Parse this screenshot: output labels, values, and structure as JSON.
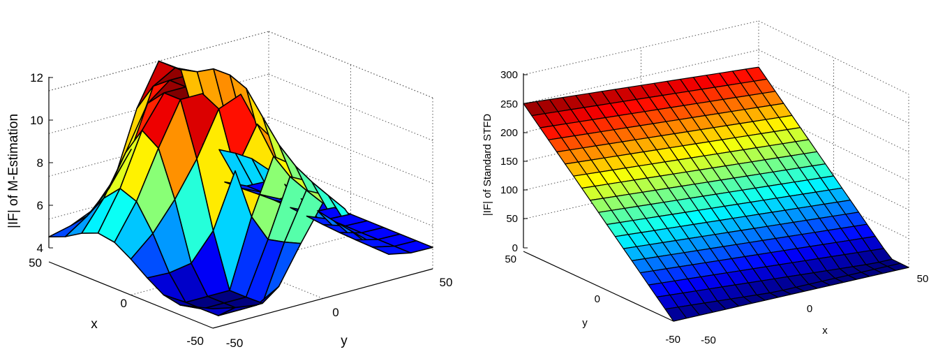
{
  "chart_data": [
    {
      "type": "surface",
      "zlabel": "|IF| of M-Estimation",
      "xlabel": "x",
      "ylabel": "y",
      "xlim": [
        -50,
        50
      ],
      "ylim": [
        -50,
        50
      ],
      "zlim": [
        4,
        12
      ],
      "zticks": [
        "4",
        "6",
        "8",
        "10",
        "12"
      ],
      "xticks": [
        "-50",
        "0",
        "50"
      ],
      "yticks": [
        "-50",
        "0",
        "50"
      ],
      "grid": true,
      "colormap": "jet"
    },
    {
      "type": "surface",
      "zlabel": "|IF| of Standard STFD",
      "xlabel": "x",
      "ylabel": "y",
      "xlim": [
        -50,
        50
      ],
      "ylim": [
        -50,
        50
      ],
      "zlim": [
        0,
        300
      ],
      "zticks": [
        "0",
        "50",
        "100",
        "150",
        "200",
        "250",
        "300"
      ],
      "xticks": [
        "-50",
        "0",
        "50"
      ],
      "yticks": [
        "-50",
        "0",
        "50"
      ],
      "grid": true,
      "colormap": "jet"
    }
  ],
  "colors": {
    "edge": "#000000",
    "grid": "#555555"
  }
}
